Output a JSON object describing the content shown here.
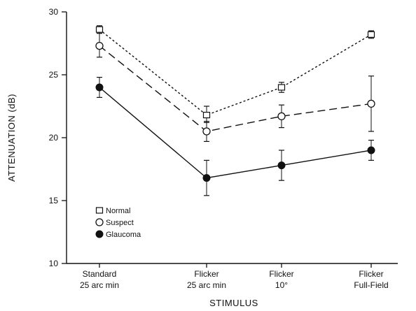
{
  "chart_data": {
    "type": "line",
    "xlabel": "STIMULUS",
    "ylabel": "ATTENUATION  (dB)",
    "ylim": [
      10,
      30
    ],
    "yticks": [
      10,
      15,
      20,
      25,
      30
    ],
    "categories": [
      [
        "Standard",
        "25 arc min"
      ],
      [
        "Flicker",
        "25 arc min"
      ],
      [
        "Flicker",
        "10°"
      ],
      [
        "Flicker",
        "Full-Field"
      ]
    ],
    "legend_position": "lower-left",
    "grid": false,
    "series": [
      {
        "name": "Normal",
        "marker": "square-open",
        "linestyle": "dotted",
        "values": [
          28.6,
          21.8,
          24.0,
          28.2
        ],
        "error": [
          [
            28.3,
            28.9
          ],
          [
            21.2,
            22.5
          ],
          [
            23.6,
            24.4
          ],
          [
            27.9,
            28.5
          ]
        ]
      },
      {
        "name": "Suspect",
        "marker": "circle-open",
        "linestyle": "dashed",
        "values": [
          27.3,
          20.5,
          21.7,
          22.7
        ],
        "error": [
          [
            26.4,
            28.3
          ],
          [
            19.7,
            21.3
          ],
          [
            20.8,
            22.6
          ],
          [
            20.5,
            24.9
          ]
        ]
      },
      {
        "name": "Glaucoma",
        "marker": "circle-filled",
        "linestyle": "solid",
        "values": [
          24.0,
          16.8,
          17.8,
          19.0
        ],
        "error": [
          [
            23.2,
            24.8
          ],
          [
            15.4,
            18.2
          ],
          [
            16.6,
            19.0
          ],
          [
            18.2,
            19.8
          ]
        ]
      }
    ]
  }
}
